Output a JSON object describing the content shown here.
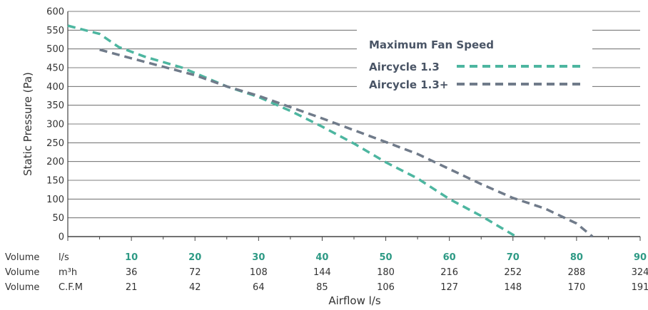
{
  "chart_data": {
    "type": "line",
    "title": "",
    "ylabel": "Static Pressure (Pa)",
    "xlabel": "Airflow l/s",
    "ylim": [
      0,
      600
    ],
    "xlim": [
      0,
      90
    ],
    "yticks": [
      0,
      50,
      100,
      150,
      200,
      250,
      300,
      350,
      400,
      450,
      500,
      550,
      600
    ],
    "grid": true,
    "legend": {
      "title": "Maximum Fan Speed",
      "placement": "top-right"
    },
    "series": [
      {
        "name": "Aircycle 1.3",
        "color": "#4db6a0",
        "style": "dashed",
        "x": [
          0,
          5,
          8,
          12,
          18,
          25,
          30,
          35,
          40,
          45,
          50,
          55,
          60,
          65,
          70.5
        ],
        "y": [
          562,
          540,
          505,
          480,
          450,
          400,
          372,
          335,
          293,
          248,
          198,
          155,
          100,
          55,
          0
        ]
      },
      {
        "name": "Aircycle 1.3+",
        "color": "#707b8a",
        "style": "dashed",
        "x": [
          5,
          10,
          20,
          25,
          30,
          35,
          40,
          50,
          55,
          60,
          65,
          70,
          75,
          80,
          82.5
        ],
        "y": [
          498,
          475,
          430,
          400,
          375,
          345,
          315,
          252,
          220,
          180,
          140,
          103,
          75,
          35,
          0
        ]
      }
    ],
    "table_rows": [
      {
        "label": "Volume",
        "unit": "l/s",
        "values": [
          "10",
          "20",
          "30",
          "40",
          "50",
          "60",
          "70",
          "80",
          "90"
        ]
      },
      {
        "label": "Volume",
        "unit": "m³h",
        "values": [
          "36",
          "72",
          "108",
          "144",
          "180",
          "216",
          "252",
          "288",
          "324"
        ]
      },
      {
        "label": "Volume",
        "unit": "C.F.M",
        "values": [
          "21",
          "42",
          "64",
          "85",
          "106",
          "127",
          "148",
          "170",
          "191"
        ]
      }
    ],
    "table_x": [
      10,
      20,
      30,
      40,
      50,
      60,
      70,
      80,
      90
    ]
  }
}
